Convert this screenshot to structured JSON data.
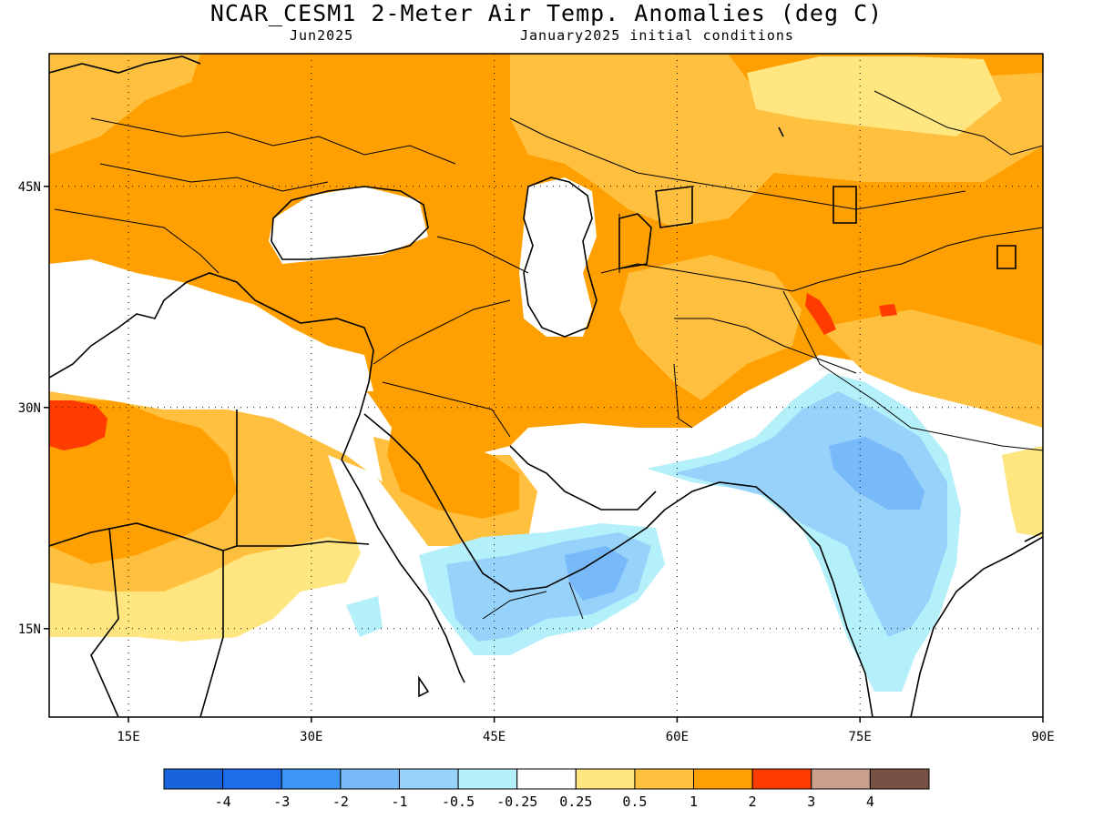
{
  "header": {
    "title": "NCAR_CESM1 2-Meter Air Temp. Anomalies (deg C)",
    "valid_month": "Jun2025",
    "init_conditions": "January2025 initial conditions"
  },
  "map": {
    "lon_range": [
      8.5,
      90
    ],
    "lat_range": [
      9,
      54
    ],
    "lon_ticks": [
      {
        "value": 15,
        "label": "15E"
      },
      {
        "value": 30,
        "label": "30E"
      },
      {
        "value": 45,
        "label": "45E"
      },
      {
        "value": 60,
        "label": "60E"
      },
      {
        "value": 75,
        "label": "75E"
      },
      {
        "value": 90,
        "label": "90E"
      }
    ],
    "lat_ticks": [
      {
        "value": 45,
        "label": "45N"
      },
      {
        "value": 30,
        "label": "30N"
      },
      {
        "value": 15,
        "label": "15N"
      }
    ],
    "gridlines": "dotted",
    "colors": {
      "pos_0_25_0_5": "#ffe680",
      "pos_0_5_1": "#ffc040",
      "pos_1_2": "#ffa000",
      "pos_2_3": "#ff3c00",
      "neg_0_25_0_5": "#b4f0fa",
      "neg_0_5_1": "#96d2fa",
      "neg_1_2": "#78b9fa"
    }
  },
  "legend": {
    "bins": [
      {
        "color": "#1964dc"
      },
      {
        "color": "#1e6eeb"
      },
      {
        "color": "#3c96f5"
      },
      {
        "color": "#78b9fa"
      },
      {
        "color": "#96d2fa"
      },
      {
        "color": "#b4f0fa"
      },
      {
        "color": "#ffffff"
      },
      {
        "color": "#ffe680"
      },
      {
        "color": "#ffc040"
      },
      {
        "color": "#ffa000"
      },
      {
        "color": "#ff3c00"
      },
      {
        "color": "#c8a08c"
      },
      {
        "color": "#785044"
      }
    ],
    "labels": [
      "-4",
      "-3",
      "-2",
      "-1",
      "-0.5",
      "-0.25",
      "0.25",
      "0.5",
      "1",
      "2",
      "3",
      "4"
    ]
  }
}
